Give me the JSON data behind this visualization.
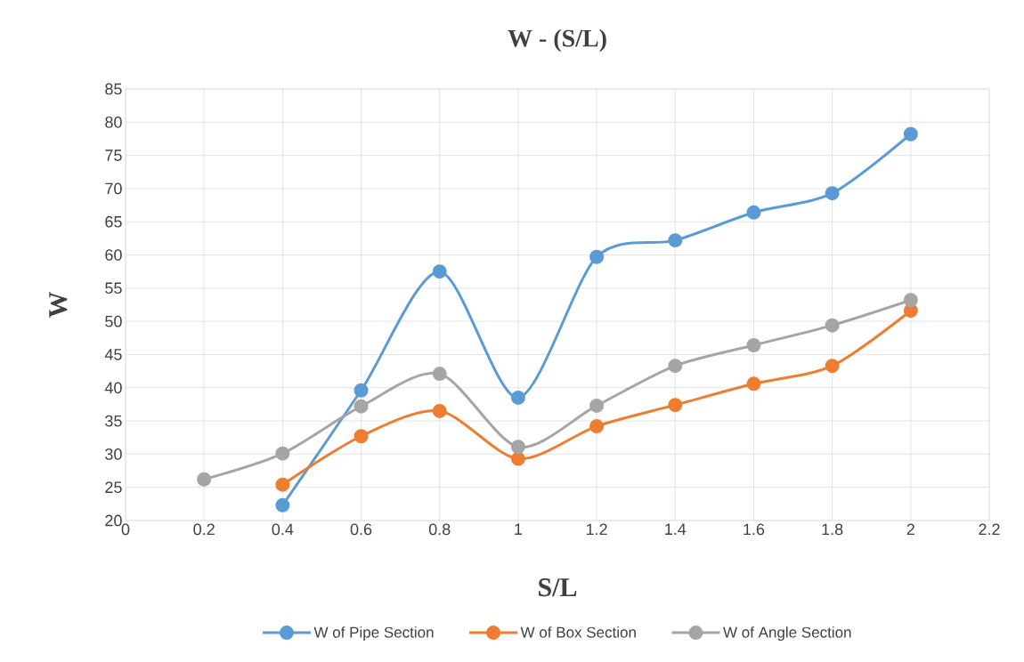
{
  "chart_data": {
    "type": "line",
    "title": "W - (S/L)",
    "xlabel": "S/L",
    "ylabel": "W",
    "x": [
      0.2,
      0.4,
      0.6,
      0.8,
      1,
      1.2,
      1.4,
      1.6,
      1.8,
      2
    ],
    "series": [
      {
        "name": "W of Pipe Section",
        "color": "#5b9bd5",
        "values": [
          null,
          22.3,
          39.6,
          57.5,
          38.5,
          59.7,
          62.2,
          66.4,
          69.3,
          78.2
        ]
      },
      {
        "name": "W of Box Section",
        "color": "#ed7d31",
        "values": [
          null,
          25.4,
          32.7,
          36.5,
          29.3,
          34.2,
          37.4,
          40.6,
          43.3,
          51.6
        ]
      },
      {
        "name": "W of Angle Section",
        "color": "#a5a5a5",
        "values": [
          26.2,
          30.1,
          37.2,
          42.1,
          31.1,
          37.3,
          43.3,
          46.4,
          49.4,
          53.2
        ]
      }
    ],
    "xlim": [
      0,
      2.2
    ],
    "xticks": [
      0,
      0.2,
      0.4,
      0.6,
      0.8,
      1,
      1.2,
      1.4,
      1.6,
      1.8,
      2,
      2.2
    ],
    "ylim": [
      20,
      85
    ],
    "yticks": [
      20,
      25,
      30,
      35,
      40,
      45,
      50,
      55,
      60,
      65,
      70,
      75,
      80,
      85
    ],
    "grid": true,
    "legend": "bottom",
    "marker": "circle",
    "line_style": "solid"
  }
}
